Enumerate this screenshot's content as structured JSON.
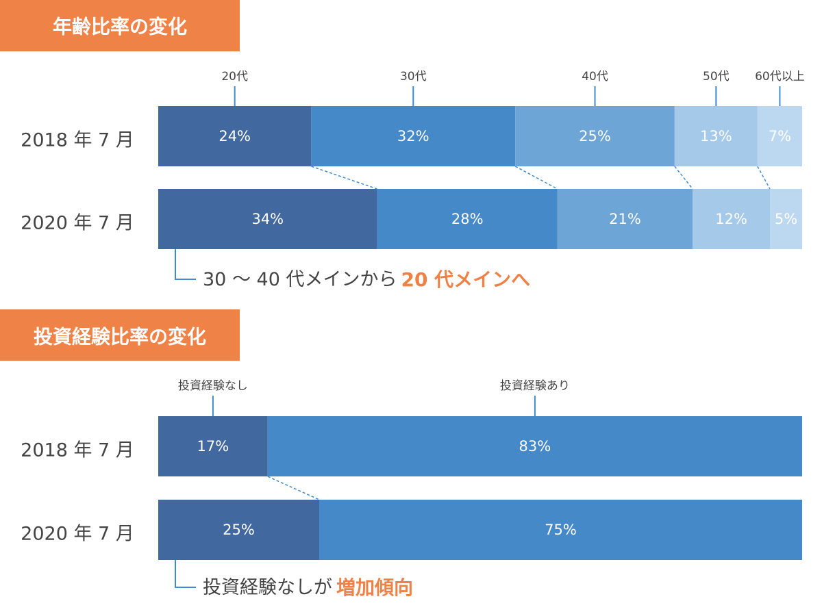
{
  "colors": {
    "header": "#ef8246",
    "accent": "#ee8246",
    "segments": [
      "#41699f",
      "#4689c9",
      "#6ea5d7",
      "#a5c9e8",
      "#bcd8f0"
    ],
    "connector": "#3f8bcf"
  },
  "chart_data": [
    {
      "type": "bar",
      "stacked": "100%",
      "orientation": "horizontal",
      "title": "年齢比率の変化",
      "rows": [
        "2018 年 7 月",
        "2020 年 7 月"
      ],
      "series": [
        {
          "name": "20代",
          "values": [
            24,
            34
          ]
        },
        {
          "name": "30代",
          "values": [
            32,
            28
          ]
        },
        {
          "name": "40代",
          "values": [
            25,
            21
          ]
        },
        {
          "name": "50代",
          "values": [
            13,
            12
          ]
        },
        {
          "name": "60代以上",
          "values": [
            7,
            5
          ]
        }
      ],
      "unit": "%",
      "note": {
        "text": "30 〜 40 代メインから",
        "highlight": "20 代メインへ"
      }
    },
    {
      "type": "bar",
      "stacked": "100%",
      "orientation": "horizontal",
      "title": "投資経験比率の変化",
      "rows": [
        "2018 年 7 月",
        "2020 年 7 月"
      ],
      "series": [
        {
          "name": "投資経験なし",
          "values": [
            17,
            25
          ]
        },
        {
          "name": "投資経験あり",
          "values": [
            83,
            75
          ]
        }
      ],
      "unit": "%",
      "note": {
        "text": "投資経験なしが",
        "highlight": "増加傾向"
      }
    }
  ]
}
